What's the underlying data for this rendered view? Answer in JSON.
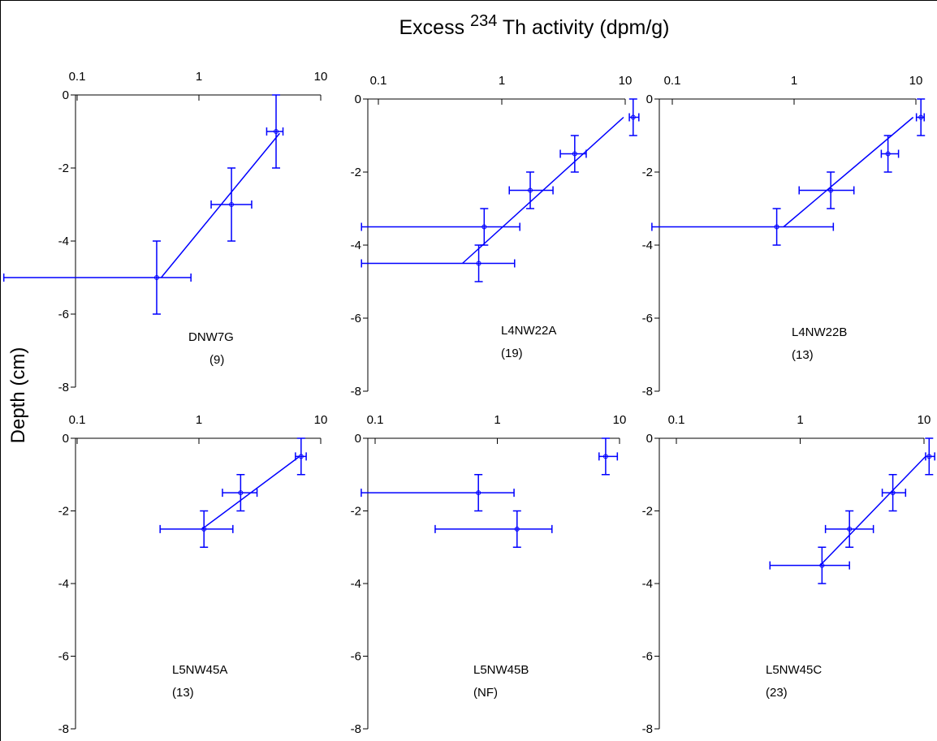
{
  "title": {
    "prefix": "Excess",
    "superscript": "234",
    "rest": "Th activity (dpm/g)"
  },
  "ylabel": "Depth (cm)",
  "chart_data": [
    {
      "type": "scatter",
      "xscale": "log",
      "xlim": [
        0.1,
        10
      ],
      "xticks": [
        0.1,
        1,
        10
      ],
      "ylim": [
        -8,
        0
      ],
      "yticks": [
        0,
        -2,
        -4,
        -6,
        -8
      ],
      "color": "#0000ff",
      "label": "DNW7G",
      "note": "(9)",
      "x": [
        4.3,
        1.85,
        0.45
      ],
      "y": [
        -1,
        -3,
        -5
      ],
      "yerr": [
        1,
        1,
        1
      ],
      "x_low": [
        3.6,
        1.26,
        0.025
      ],
      "x_high": [
        4.9,
        2.71,
        0.86
      ],
      "fit": {
        "x": [
          0.49,
          4.6
        ],
        "y": [
          -5,
          -1.05
        ]
      }
    },
    {
      "type": "scatter",
      "xscale": "log",
      "xlim": [
        0.1,
        10
      ],
      "xticks": [
        0.1,
        1,
        10
      ],
      "ylim": [
        -8,
        0
      ],
      "yticks": [
        0,
        -2,
        -4,
        -6,
        -8
      ],
      "color": "#0000ff",
      "label": "L4NW22A",
      "note": "(19)",
      "x": [
        11.6,
        3.9,
        1.7,
        0.72,
        0.65
      ],
      "y": [
        -0.5,
        -1.5,
        -2.5,
        -3.5,
        -4.5
      ],
      "yerr": [
        0.5,
        0.5,
        0.5,
        0.5,
        0.5
      ],
      "x_low": [
        10.8,
        2.98,
        1.15,
        0.073,
        0.073
      ],
      "x_high": [
        12.9,
        4.83,
        2.6,
        1.4,
        1.27
      ],
      "fit": {
        "x": [
          0.48,
          9.7
        ],
        "y": [
          -4.5,
          -0.5
        ]
      }
    },
    {
      "type": "scatter",
      "xscale": "log",
      "xlim": [
        0.1,
        10
      ],
      "xticks": [
        0.1,
        1,
        10
      ],
      "ylim": [
        -8,
        0
      ],
      "yticks": [
        0,
        -2,
        -4,
        -6,
        -8
      ],
      "color": "#0000ff",
      "label": "L4NW22B",
      "note": "(13)",
      "x": [
        11,
        5.9,
        2.0,
        0.72
      ],
      "y": [
        -0.5,
        -1.5,
        -2.5,
        -3.5
      ],
      "yerr": [
        0.5,
        0.5,
        0.5,
        0.5
      ],
      "x_low": [
        10.1,
        5.2,
        1.1,
        0.068
      ],
      "x_high": [
        11.7,
        7.2,
        3.1,
        2.1
      ],
      "fit": {
        "x": [
          0.82,
          9.5
        ],
        "y": [
          -3.5,
          -0.5
        ]
      }
    },
    {
      "type": "scatter",
      "xscale": "log",
      "xlim": [
        0.1,
        10
      ],
      "xticks": [
        0.1,
        1,
        10
      ],
      "ylim": [
        -8,
        0
      ],
      "yticks": [
        0,
        -2,
        -4,
        -6,
        -8
      ],
      "color": "#0000ff",
      "label": "L5NW45A",
      "note": "(13)",
      "x": [
        6.9,
        2.2,
        1.1
      ],
      "y": [
        -0.5,
        -1.5,
        -2.5
      ],
      "yerr": [
        0.5,
        0.5,
        0.5
      ],
      "x_low": [
        6.2,
        1.56,
        0.48
      ],
      "x_high": [
        7.6,
        3.0,
        1.9
      ],
      "fit": {
        "x": [
          1.06,
          6.7
        ],
        "y": [
          -2.5,
          -0.5
        ]
      }
    },
    {
      "type": "scatter",
      "xscale": "log",
      "xlim": [
        0.1,
        10
      ],
      "xticks": [
        0.1,
        1,
        10
      ],
      "ylim": [
        -8,
        0
      ],
      "yticks": [
        0,
        -2,
        -4,
        -6,
        -8
      ],
      "color": "#0000ff",
      "label": "L5NW45B",
      "note": "(NF)",
      "x": [
        7.7,
        0.7,
        1.45
      ],
      "y": [
        -0.5,
        -1.5,
        -2.5
      ],
      "yerr": [
        0.5,
        0.5,
        0.5
      ],
      "x_low": [
        6.8,
        0.077,
        0.31
      ],
      "x_high": [
        9.6,
        1.37,
        2.8
      ]
    },
    {
      "type": "scatter",
      "xscale": "log",
      "xlim": [
        0.1,
        10
      ],
      "xticks": [
        0.1,
        1,
        10
      ],
      "ylim": [
        -8,
        0
      ],
      "yticks": [
        0,
        -2,
        -4,
        -6,
        -8
      ],
      "color": "#0000ff",
      "label": "L5NW45C",
      "note": "(23)",
      "x": [
        11,
        5.6,
        2.5,
        1.5
      ],
      "y": [
        -0.5,
        -1.5,
        -2.5,
        -3.5
      ],
      "yerr": [
        0.5,
        0.5,
        0.5,
        0.5
      ],
      "x_low": [
        10.3,
        4.6,
        1.6,
        0.57
      ],
      "x_high": [
        12.2,
        7.1,
        3.9,
        2.5
      ],
      "fit": {
        "x": [
          1.45,
          10.3
        ],
        "y": [
          -3.5,
          -0.5
        ]
      }
    }
  ]
}
